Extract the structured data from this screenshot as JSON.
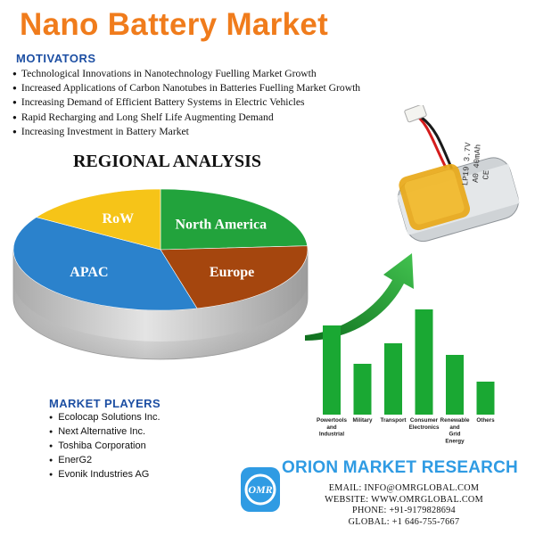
{
  "title": "Nano Battery Market",
  "motivators": {
    "heading": "MOTIVATORS",
    "items": [
      "Technological Innovations in Nanotechnology Fuelling Market Growth",
      "Increased Applications of Carbon Nanotubes in Batteries Fuelling Market Growth",
      "Increasing Demand of Efficient Battery Systems in Electric Vehicles",
      "Rapid Recharging and Long Shelf Life Augmenting Demand",
      "Increasing Investment in Battery Market"
    ]
  },
  "regional": {
    "title": "REGIONAL ANALYSIS"
  },
  "market_players": {
    "heading": "MARKET PLAYERS",
    "items": [
      "Ecolocap Solutions Inc.",
      "Next Alternative Inc.",
      "Toshiba Corporation",
      "EnerG2",
      "Evonik Industries AG"
    ]
  },
  "chart_data": [
    {
      "type": "pie",
      "title": "REGIONAL ANALYSIS",
      "slices": [
        {
          "label": "North America",
          "value": 24,
          "color": "#22a33c"
        },
        {
          "label": "Europe",
          "value": 22,
          "color": "#a5460e"
        },
        {
          "label": "APAC",
          "value": 38,
          "color": "#2b82cc"
        },
        {
          "label": "RoW",
          "value": 16,
          "color": "#f6c418"
        }
      ]
    },
    {
      "type": "bar",
      "categories": [
        "Powertools and Industrial",
        "Military",
        "Transport",
        "Consumer Electronics",
        "Renewable and Grid Energy",
        "Others"
      ],
      "category_lines": [
        [
          "Powertools",
          "and",
          "Industrial"
        ],
        [
          "Military"
        ],
        [
          "Transport"
        ],
        [
          "Consumer",
          "Electronics"
        ],
        [
          "Renewable",
          "and",
          "Grid",
          "Energy"
        ],
        [
          "Others"
        ]
      ],
      "values": [
        100,
        57,
        80,
        118,
        67,
        37
      ],
      "color": "#1aa833",
      "ylim": [
        0,
        125
      ]
    }
  ],
  "battery": {
    "label_lines": [
      "LP19 3.7V",
      "A0 40mAh",
      "CE"
    ]
  },
  "company": {
    "logo_text": "OMR",
    "name": "ORION MARKET RESEARCH",
    "email": "EMAIL: INFO@OMRGLOBAL.COM",
    "website": "WEBSITE: WWW.OMRGLOBAL.COM",
    "phone": "PHONE: +91-9179828694",
    "global": "GLOBAL: +1 646-755-7667"
  },
  "colors": {
    "title": "#f07c1c",
    "heading": "#1d4fa3",
    "brand": "#2f9be3",
    "bar": "#1aa833"
  }
}
